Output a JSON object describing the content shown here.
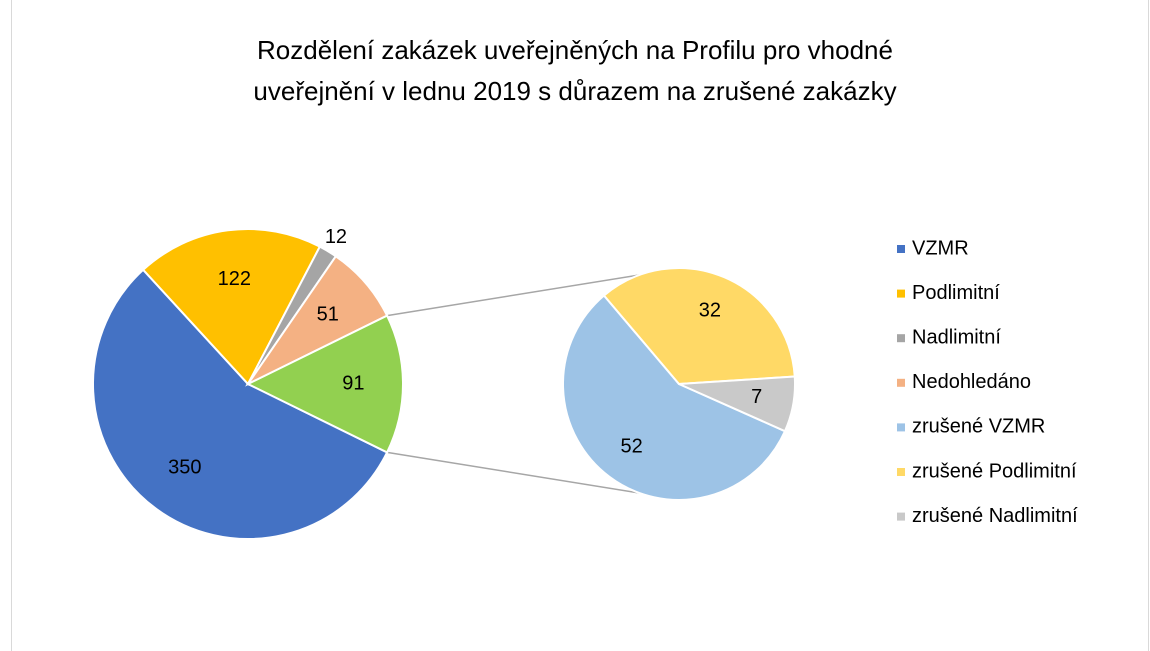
{
  "chart_data": {
    "type": "pie-of-pie",
    "title": [
      "Rozdělení zakázek uveřejněných na Profilu pro vhodné",
      "uveřejnění v lednu 2019 s důrazem na zrušené zakázky"
    ],
    "categories": [
      "VZMR",
      "Podlimitní",
      "Nadlimitní",
      "Nedohledáno",
      null
    ],
    "values": [
      350,
      122,
      12,
      51,
      91
    ],
    "colors": [
      "#4472c4",
      "#ffc000",
      "#a5a5a5",
      "#f4b183",
      "#92d050"
    ],
    "secondary": {
      "categories": [
        "zrušené VZMR",
        "zrušené Podlimitní",
        "zrušené  Nadlimitní"
      ],
      "values": [
        52,
        32,
        7
      ],
      "colors": [
        "#9dc3e6",
        "#ffd966",
        "#c9c9c9"
      ]
    },
    "legend": "right"
  }
}
